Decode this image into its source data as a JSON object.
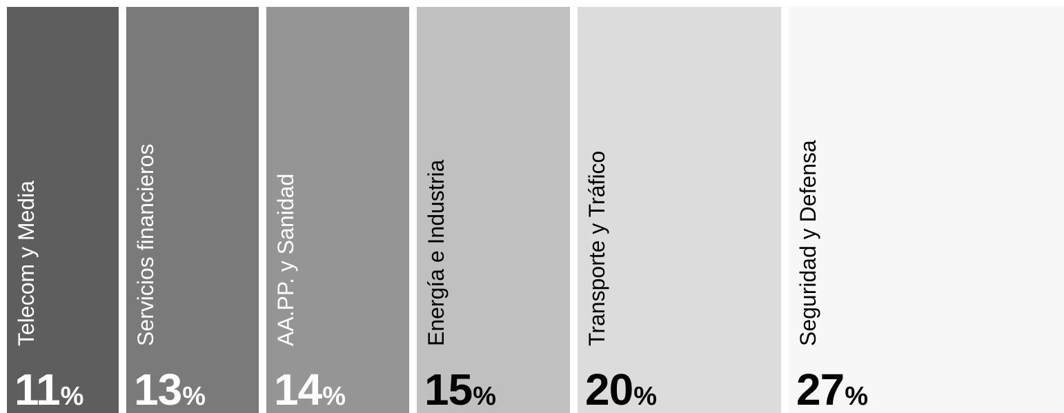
{
  "chart_data": {
    "type": "bar",
    "categories": [
      "Telecom y Media",
      "Servicios financieros",
      "AA.PP. y Sanidad",
      "Energía e Industria",
      "Transporte y Tráfico",
      "Seguridad y Defensa"
    ],
    "values": [
      11,
      13,
      14,
      15,
      20,
      27
    ],
    "value_suffix": "%",
    "colors": [
      "#5e5e5e",
      "#7a7a7a",
      "#959595",
      "#c0c0c0",
      "#dcdcdc",
      "#f7f7f7"
    ],
    "text_colors": [
      "#ffffff",
      "#ffffff",
      "#ffffff",
      "#000000",
      "#000000",
      "#000000"
    ],
    "orientation": "horizontal-stacked",
    "label_rotation": "vertical",
    "title": "",
    "xlabel": "",
    "ylabel": ""
  }
}
